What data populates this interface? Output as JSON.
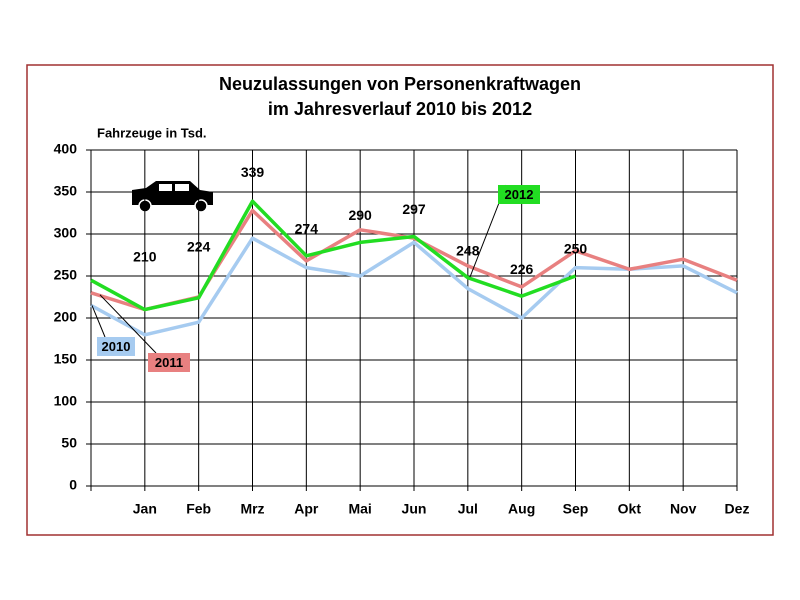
{
  "chart_data": {
    "type": "line",
    "title": "Neuzulassungen von Personenkraftwagen",
    "subtitle": "im Jahresverlauf 2010 bis 2012",
    "y_label": "Fahrzeuge in Tsd.",
    "categories": [
      null,
      "Jan",
      "Feb",
      "Mrz",
      "Apr",
      "Mai",
      "Jun",
      "Jul",
      "Aug",
      "Sep",
      "Okt",
      "Nov",
      "Dez"
    ],
    "series": [
      {
        "name": "2010",
        "color": "#a6cbf0",
        "values": [
          215,
          180,
          195,
          295,
          260,
          250,
          290,
          235,
          200,
          260,
          258,
          262,
          230
        ]
      },
      {
        "name": "2011",
        "color": "#e88080",
        "values": [
          230,
          210,
          225,
          328,
          268,
          305,
          295,
          262,
          237,
          280,
          258,
          270,
          245
        ]
      },
      {
        "name": "2012",
        "color": "#22dd22",
        "values": [
          245,
          210,
          224,
          339,
          274,
          290,
          297,
          248,
          226,
          250,
          null,
          null,
          null
        ]
      }
    ],
    "labeled_series": 2,
    "ylim": [
      0,
      400
    ],
    "yticks": [
      0,
      50,
      100,
      150,
      200,
      250,
      300,
      350,
      400
    ],
    "grid": true
  }
}
